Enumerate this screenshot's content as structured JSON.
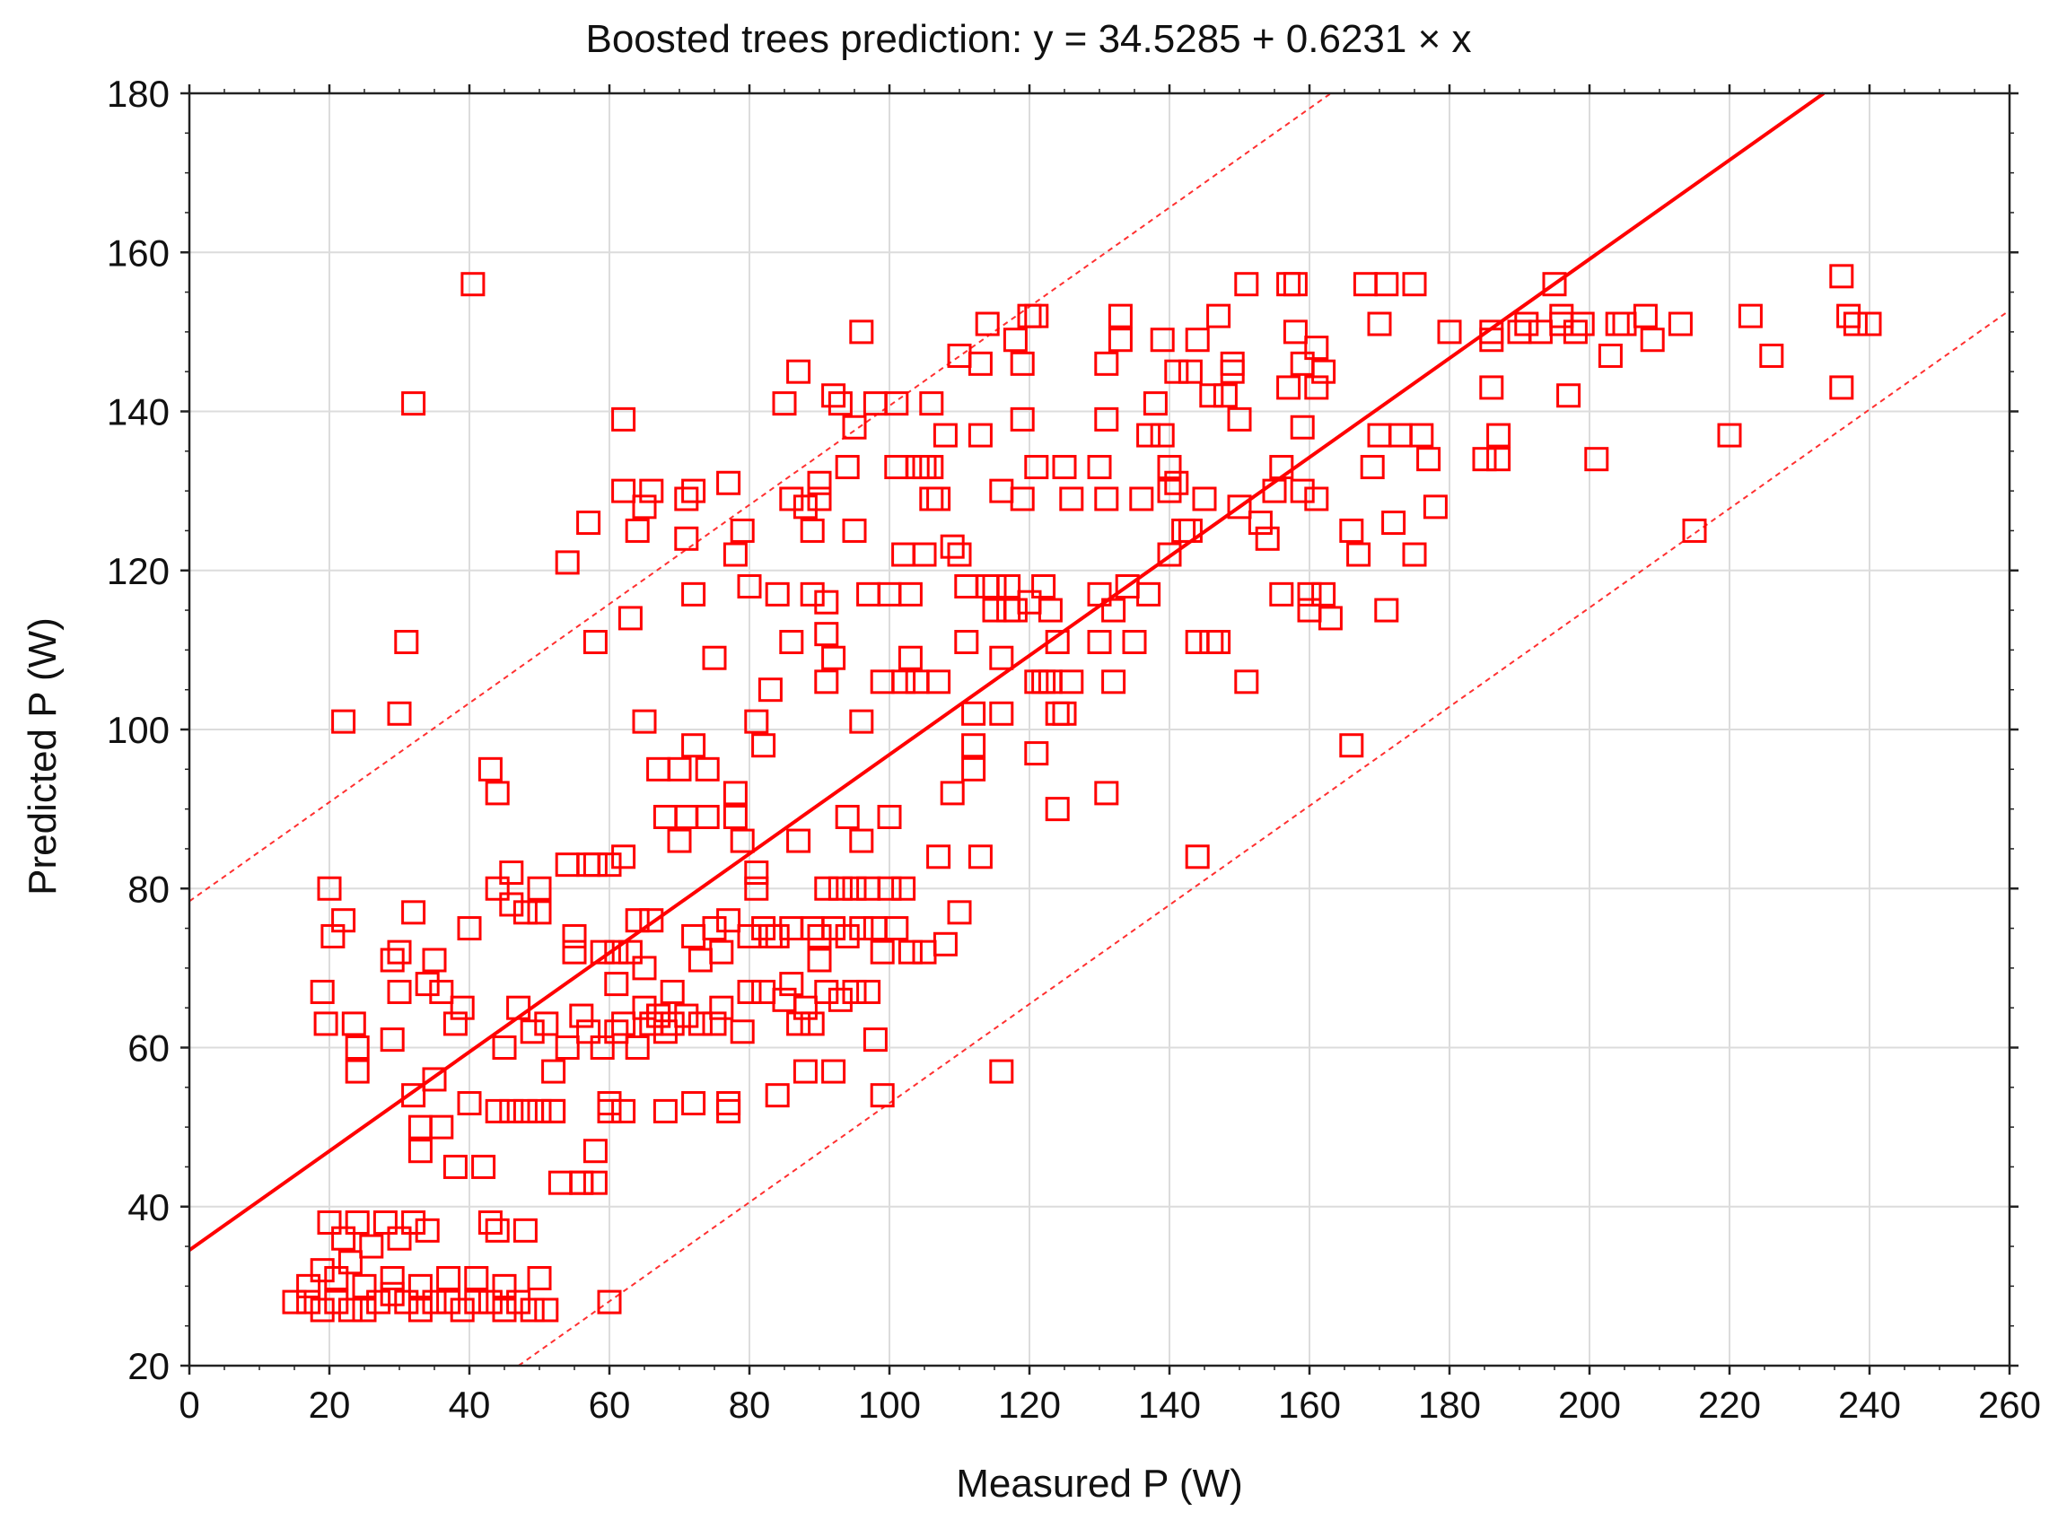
{
  "chart_data": {
    "type": "scatter",
    "title": "Boosted trees prediction: y = 34.5285 + 0.6231 × x",
    "xlabel": "Measured P (W)",
    "ylabel": "Predicted P (W)",
    "xlim": [
      0,
      260
    ],
    "ylim": [
      20,
      180
    ],
    "xticks": [
      0,
      20,
      40,
      60,
      80,
      100,
      120,
      140,
      160,
      180,
      200,
      220,
      240,
      260
    ],
    "yticks": [
      20,
      40,
      60,
      80,
      100,
      120,
      140,
      160,
      180
    ],
    "grid": true,
    "marker": "open-square",
    "color": "#ff0000",
    "fit": {
      "intercept": 34.5285,
      "slope": 0.6231
    },
    "prediction_band": {
      "lower_intercept": -9.3,
      "upper_intercept": 78.4,
      "slope": 0.6231
    },
    "points": [
      [
        40.5,
        156
      ],
      [
        32,
        141
      ],
      [
        22,
        101
      ],
      [
        31,
        111
      ],
      [
        30,
        102
      ],
      [
        15,
        28
      ],
      [
        17,
        28
      ],
      [
        19,
        27
      ],
      [
        21,
        28
      ],
      [
        23,
        27
      ],
      [
        25,
        27
      ],
      [
        27,
        28
      ],
      [
        29,
        29
      ],
      [
        31,
        28
      ],
      [
        33,
        27
      ],
      [
        35,
        28
      ],
      [
        37,
        28
      ],
      [
        39,
        27
      ],
      [
        41,
        28
      ],
      [
        43,
        28
      ],
      [
        45,
        27
      ],
      [
        47,
        28
      ],
      [
        49,
        27
      ],
      [
        51,
        27
      ],
      [
        17,
        30
      ],
      [
        21,
        31
      ],
      [
        25,
        30
      ],
      [
        29,
        31
      ],
      [
        33,
        30
      ],
      [
        37,
        31
      ],
      [
        41,
        31
      ],
      [
        45,
        30
      ],
      [
        50,
        31
      ],
      [
        60,
        28
      ],
      [
        20,
        38
      ],
      [
        22,
        36
      ],
      [
        24,
        38
      ],
      [
        26,
        35
      ],
      [
        28,
        38
      ],
      [
        30,
        36
      ],
      [
        32,
        38
      ],
      [
        34,
        37
      ],
      [
        43,
        38
      ],
      [
        44,
        37
      ],
      [
        48,
        37
      ],
      [
        19,
        32
      ],
      [
        23,
        33
      ],
      [
        19,
        67
      ],
      [
        19.5,
        63
      ],
      [
        20,
        80
      ],
      [
        20.5,
        74
      ],
      [
        22,
        76
      ],
      [
        23.5,
        63
      ],
      [
        24,
        60
      ],
      [
        24,
        57
      ],
      [
        29,
        61
      ],
      [
        29,
        71
      ],
      [
        30,
        67
      ],
      [
        32,
        77
      ],
      [
        32,
        54
      ],
      [
        33,
        47
      ],
      [
        33,
        50
      ],
      [
        34,
        68
      ],
      [
        35,
        71
      ],
      [
        35,
        56
      ],
      [
        36,
        67
      ],
      [
        36,
        50
      ],
      [
        38,
        63
      ],
      [
        38,
        45
      ],
      [
        39,
        65
      ],
      [
        40,
        53
      ],
      [
        40,
        75
      ],
      [
        42,
        45
      ],
      [
        43,
        95
      ],
      [
        44,
        92
      ],
      [
        44,
        80
      ],
      [
        45,
        60
      ],
      [
        46,
        82
      ],
      [
        46,
        78
      ],
      [
        47,
        65
      ],
      [
        48,
        77
      ],
      [
        49,
        62
      ],
      [
        50,
        80
      ],
      [
        50,
        77
      ],
      [
        51,
        63
      ],
      [
        52,
        57
      ],
      [
        52,
        52
      ],
      [
        53,
        43
      ],
      [
        54,
        60
      ],
      [
        54,
        83
      ],
      [
        55,
        74
      ],
      [
        55,
        72
      ],
      [
        56,
        64
      ],
      [
        56,
        43
      ],
      [
        57,
        83
      ],
      [
        57,
        62
      ],
      [
        58,
        47
      ],
      [
        58,
        83
      ],
      [
        59,
        60
      ],
      [
        59,
        72
      ],
      [
        60,
        83
      ],
      [
        60,
        53
      ],
      [
        61,
        62
      ],
      [
        61,
        68
      ],
      [
        62,
        63
      ],
      [
        62,
        84
      ],
      [
        63,
        72
      ],
      [
        64,
        76
      ],
      [
        64,
        60
      ],
      [
        65,
        65
      ],
      [
        65,
        70
      ],
      [
        66,
        76
      ],
      [
        66,
        63
      ],
      [
        67,
        64
      ],
      [
        67,
        95
      ],
      [
        68,
        62
      ],
      [
        68,
        89
      ],
      [
        69,
        67
      ],
      [
        69,
        63
      ],
      [
        70,
        86
      ],
      [
        70,
        95
      ],
      [
        71,
        64
      ],
      [
        71,
        89
      ],
      [
        72,
        74
      ],
      [
        72,
        98
      ],
      [
        73,
        71
      ],
      [
        73,
        63
      ],
      [
        74,
        95
      ],
      [
        74,
        89
      ],
      [
        75,
        63
      ],
      [
        75,
        75
      ],
      [
        76,
        65
      ],
      [
        76,
        72
      ],
      [
        77,
        53
      ],
      [
        77,
        76
      ],
      [
        78,
        92
      ],
      [
        78,
        89
      ],
      [
        79,
        62
      ],
      [
        79,
        86
      ],
      [
        80,
        74
      ],
      [
        80,
        67
      ],
      [
        81,
        82
      ],
      [
        81,
        80
      ],
      [
        82,
        75
      ],
      [
        82,
        67
      ],
      [
        83,
        74
      ],
      [
        84,
        54
      ],
      [
        84,
        74
      ],
      [
        85,
        66
      ],
      [
        86,
        75
      ],
      [
        86,
        68
      ],
      [
        87,
        86
      ],
      [
        87,
        63
      ],
      [
        88,
        65
      ],
      [
        88,
        57
      ],
      [
        89,
        75
      ],
      [
        89,
        63
      ],
      [
        90,
        71
      ],
      [
        90,
        74
      ],
      [
        91,
        67
      ],
      [
        91,
        80
      ],
      [
        92,
        57
      ],
      [
        92,
        75
      ],
      [
        93,
        80
      ],
      [
        93,
        66
      ],
      [
        94,
        74
      ],
      [
        94,
        89
      ],
      [
        95,
        67
      ],
      [
        95,
        80
      ],
      [
        96,
        86
      ],
      [
        96,
        75
      ],
      [
        97,
        67
      ],
      [
        97,
        80
      ],
      [
        98,
        61
      ],
      [
        98,
        75
      ],
      [
        99,
        54
      ],
      [
        99,
        72
      ],
      [
        100,
        80
      ],
      [
        100,
        89
      ],
      [
        101,
        75
      ],
      [
        102,
        80
      ],
      [
        103,
        72
      ],
      [
        105,
        72
      ],
      [
        107,
        84
      ],
      [
        108,
        73
      ],
      [
        110,
        77
      ],
      [
        113,
        84
      ],
      [
        116,
        57
      ],
      [
        30,
        72
      ],
      [
        44,
        52
      ],
      [
        46,
        52
      ],
      [
        48,
        52
      ],
      [
        50,
        52
      ],
      [
        52,
        52
      ],
      [
        56,
        43
      ],
      [
        58,
        43
      ],
      [
        60,
        52
      ],
      [
        62,
        52
      ],
      [
        68,
        52
      ],
      [
        72,
        53
      ],
      [
        77,
        52
      ],
      [
        61,
        72
      ],
      [
        67,
        64
      ],
      [
        54,
        121
      ],
      [
        57,
        126
      ],
      [
        58,
        111
      ],
      [
        62,
        130
      ],
      [
        62,
        139
      ],
      [
        63,
        114
      ],
      [
        64,
        125
      ],
      [
        65,
        128
      ],
      [
        65,
        101
      ],
      [
        66,
        130
      ],
      [
        71,
        124
      ],
      [
        71,
        129
      ],
      [
        72,
        117
      ],
      [
        72,
        130
      ],
      [
        75,
        109
      ],
      [
        77,
        131
      ],
      [
        78,
        122
      ],
      [
        79,
        125
      ],
      [
        80,
        118
      ],
      [
        81,
        101
      ],
      [
        82,
        98
      ],
      [
        83,
        105
      ],
      [
        84,
        117
      ],
      [
        85,
        141
      ],
      [
        86,
        111
      ],
      [
        86,
        129
      ],
      [
        87,
        145
      ],
      [
        88,
        128
      ],
      [
        89,
        125
      ],
      [
        89,
        117
      ],
      [
        90,
        129
      ],
      [
        90,
        131
      ],
      [
        91,
        116
      ],
      [
        91,
        112
      ],
      [
        91,
        106
      ],
      [
        92,
        109
      ],
      [
        92,
        142
      ],
      [
        93,
        141
      ],
      [
        94,
        133
      ],
      [
        95,
        125
      ],
      [
        95,
        138
      ],
      [
        96,
        150
      ],
      [
        96,
        101
      ],
      [
        97,
        117
      ],
      [
        98,
        141
      ],
      [
        99,
        106
      ],
      [
        100,
        117
      ],
      [
        101,
        141
      ],
      [
        101,
        133
      ],
      [
        102,
        122
      ],
      [
        102,
        106
      ],
      [
        103,
        109
      ],
      [
        103,
        117
      ],
      [
        104,
        106
      ],
      [
        104,
        133
      ],
      [
        105,
        133
      ],
      [
        105,
        122
      ],
      [
        106,
        133
      ],
      [
        106,
        129
      ],
      [
        106,
        141
      ],
      [
        107,
        106
      ],
      [
        107,
        129
      ],
      [
        108,
        137
      ],
      [
        109,
        123
      ],
      [
        109,
        92
      ],
      [
        110,
        122
      ],
      [
        110,
        147
      ],
      [
        111,
        111
      ],
      [
        111,
        118
      ],
      [
        112,
        102
      ],
      [
        112,
        95
      ],
      [
        112,
        98
      ],
      [
        113,
        146
      ],
      [
        113,
        137
      ],
      [
        114,
        118
      ],
      [
        114,
        151
      ],
      [
        115,
        118
      ],
      [
        115,
        115
      ],
      [
        116,
        130
      ],
      [
        116,
        109
      ],
      [
        116,
        102
      ],
      [
        117,
        118
      ],
      [
        117,
        115
      ],
      [
        118,
        149
      ],
      [
        118,
        115
      ],
      [
        119,
        139
      ],
      [
        119,
        146
      ],
      [
        119,
        129
      ],
      [
        120,
        152
      ],
      [
        120,
        116
      ],
      [
        121,
        152
      ],
      [
        121,
        133
      ],
      [
        121,
        97
      ],
      [
        121,
        106
      ],
      [
        122,
        118
      ],
      [
        122,
        106
      ],
      [
        123,
        106
      ],
      [
        123,
        115
      ],
      [
        124,
        111
      ],
      [
        124,
        102
      ],
      [
        124,
        90
      ],
      [
        125,
        133
      ],
      [
        125,
        102
      ],
      [
        126,
        129
      ],
      [
        126,
        106
      ],
      [
        130,
        117
      ],
      [
        130,
        133
      ],
      [
        130,
        111
      ],
      [
        131,
        139
      ],
      [
        131,
        146
      ],
      [
        131,
        129
      ],
      [
        131,
        92
      ],
      [
        132,
        115
      ],
      [
        132,
        106
      ],
      [
        133,
        152
      ],
      [
        133,
        149
      ],
      [
        134,
        118
      ],
      [
        135,
        111
      ],
      [
        136,
        129
      ],
      [
        137,
        117
      ],
      [
        137,
        137
      ],
      [
        138,
        141
      ],
      [
        139,
        137
      ],
      [
        139,
        149
      ],
      [
        140,
        133
      ],
      [
        140,
        130
      ],
      [
        140,
        122
      ],
      [
        141,
        145
      ],
      [
        141,
        131
      ],
      [
        142,
        125
      ],
      [
        143,
        125
      ],
      [
        143,
        145
      ],
      [
        144,
        111
      ],
      [
        144,
        84
      ],
      [
        144,
        149
      ],
      [
        145,
        129
      ],
      [
        146,
        111
      ],
      [
        146,
        142
      ],
      [
        147,
        152
      ],
      [
        147,
        111
      ],
      [
        148,
        142
      ],
      [
        149,
        145
      ],
      [
        149,
        146
      ],
      [
        150,
        139
      ],
      [
        150,
        128
      ],
      [
        151,
        106
      ],
      [
        151,
        156
      ],
      [
        153,
        126
      ],
      [
        154,
        124
      ],
      [
        155,
        130
      ],
      [
        156,
        117
      ],
      [
        156,
        133
      ],
      [
        157,
        143
      ],
      [
        157,
        156
      ],
      [
        158,
        156
      ],
      [
        158,
        150
      ],
      [
        159,
        130
      ],
      [
        159,
        138
      ],
      [
        159,
        146
      ],
      [
        160,
        117
      ],
      [
        160,
        115
      ],
      [
        161,
        148
      ],
      [
        161,
        143
      ],
      [
        161,
        129
      ],
      [
        162,
        145
      ],
      [
        162,
        117
      ],
      [
        163,
        114
      ],
      [
        166,
        125
      ],
      [
        166,
        98
      ],
      [
        167,
        122
      ],
      [
        168,
        156
      ],
      [
        169,
        133
      ],
      [
        170,
        137
      ],
      [
        170,
        151
      ],
      [
        171,
        115
      ],
      [
        171,
        156
      ],
      [
        172,
        126
      ],
      [
        173,
        137
      ],
      [
        175,
        156
      ],
      [
        175,
        122
      ],
      [
        176,
        137
      ],
      [
        177,
        134
      ],
      [
        178,
        128
      ],
      [
        180,
        150
      ],
      [
        185,
        134
      ],
      [
        186,
        150
      ],
      [
        186,
        143
      ],
      [
        186,
        149
      ],
      [
        187,
        137
      ],
      [
        187,
        134
      ],
      [
        190,
        150
      ],
      [
        191,
        151
      ],
      [
        193,
        150
      ],
      [
        195,
        156
      ],
      [
        196,
        152
      ],
      [
        196,
        151
      ],
      [
        197,
        142
      ],
      [
        198,
        150
      ],
      [
        199,
        151
      ],
      [
        201,
        134
      ],
      [
        203,
        147
      ],
      [
        204,
        151
      ],
      [
        205,
        151
      ],
      [
        208,
        152
      ],
      [
        209,
        149
      ],
      [
        213,
        151
      ],
      [
        215,
        125
      ],
      [
        220,
        137
      ],
      [
        223,
        152
      ],
      [
        226,
        147
      ],
      [
        236,
        157
      ],
      [
        236,
        143
      ],
      [
        237,
        152
      ],
      [
        238,
        151
      ],
      [
        240,
        151
      ]
    ]
  }
}
